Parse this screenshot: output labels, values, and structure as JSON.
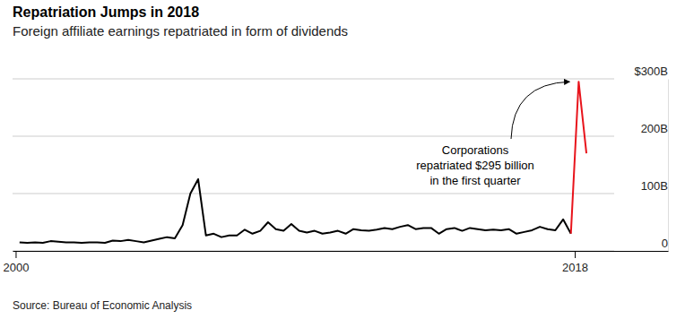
{
  "chart_data": {
    "type": "line",
    "title": "Repatriation Jumps in 2018",
    "subtitle": "Foreign affiliate earnings repatriated in form of dividends",
    "source": "Source: Bureau of Economic Analysis",
    "annotation": [
      "Corporations",
      "repatriated $295 billion",
      "in the first quarter"
    ],
    "x": [
      2000.125,
      2000.375,
      2000.625,
      2000.875,
      2001.125,
      2001.375,
      2001.625,
      2001.875,
      2002.125,
      2002.375,
      2002.625,
      2002.875,
      2003.125,
      2003.375,
      2003.625,
      2003.875,
      2004.125,
      2004.375,
      2004.625,
      2004.875,
      2005.125,
      2005.375,
      2005.625,
      2005.875,
      2006.125,
      2006.375,
      2006.625,
      2006.875,
      2007.125,
      2007.375,
      2007.625,
      2007.875,
      2008.125,
      2008.375,
      2008.625,
      2008.875,
      2009.125,
      2009.375,
      2009.625,
      2009.875,
      2010.125,
      2010.375,
      2010.625,
      2010.875,
      2011.125,
      2011.375,
      2011.625,
      2011.875,
      2012.125,
      2012.375,
      2012.625,
      2012.875,
      2013.125,
      2013.375,
      2013.625,
      2013.875,
      2014.125,
      2014.375,
      2014.625,
      2014.875,
      2015.125,
      2015.375,
      2015.625,
      2015.875,
      2016.125,
      2016.375,
      2016.625,
      2016.875,
      2017.125,
      2017.375,
      2017.625,
      2017.875,
      2018.125,
      2018.375
    ],
    "series": [
      {
        "color": "#000000",
        "values": [
          15,
          14,
          15,
          14,
          17,
          16,
          15,
          15,
          14,
          15,
          15,
          14,
          18,
          17,
          19,
          17,
          15,
          18,
          21,
          24,
          22,
          45,
          100,
          125,
          27,
          30,
          24,
          27,
          27,
          37,
          30,
          35,
          50,
          38,
          35,
          47,
          35,
          32,
          35,
          30,
          32,
          35,
          30,
          38,
          36,
          35,
          37,
          40,
          38,
          42,
          45,
          38,
          40,
          40,
          30,
          38,
          40,
          35,
          40,
          38,
          36,
          37,
          36,
          38,
          30,
          33,
          36,
          42,
          38,
          36,
          55,
          30,
          null,
          null
        ]
      },
      {
        "color": "#e8141c",
        "values": [
          null,
          null,
          null,
          null,
          null,
          null,
          null,
          null,
          null,
          null,
          null,
          null,
          null,
          null,
          null,
          null,
          null,
          null,
          null,
          null,
          null,
          null,
          null,
          null,
          null,
          null,
          null,
          null,
          null,
          null,
          null,
          null,
          null,
          null,
          null,
          null,
          null,
          null,
          null,
          null,
          null,
          null,
          null,
          null,
          null,
          null,
          null,
          null,
          null,
          null,
          null,
          null,
          null,
          null,
          null,
          null,
          null,
          null,
          null,
          null,
          null,
          null,
          null,
          null,
          null,
          null,
          null,
          null,
          null,
          null,
          null,
          30,
          295,
          170
        ]
      }
    ],
    "xlim": [
      1999.9,
      2021
    ],
    "xticks": [
      2000,
      2018
    ],
    "ylim": [
      0,
      300
    ],
    "yticks": [
      0,
      {
        "value": 100,
        "label": "100B"
      },
      {
        "value": 200,
        "label": "200B"
      },
      {
        "value": 300,
        "label": "$300B"
      }
    ],
    "grid": true
  }
}
